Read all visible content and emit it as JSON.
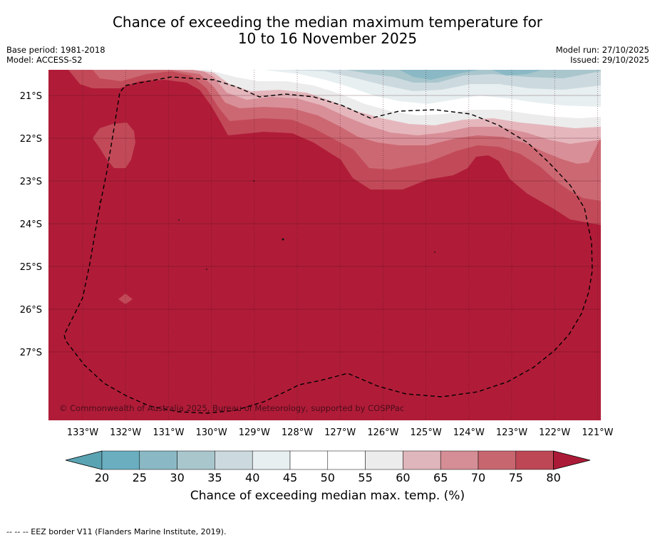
{
  "title": {
    "line1": "Chance of exceeding the median maximum temperature for",
    "line2": "10 to 16 November 2025"
  },
  "meta_left": {
    "base_period": "Base period: 1981-2018",
    "model": "Model: ACCESS-S2"
  },
  "meta_right": {
    "model_run": "Model run: 27/10/2025",
    "issued": "Issued: 29/10/2025"
  },
  "map": {
    "lon_labels": [
      "133°W",
      "132°W",
      "131°W",
      "130°W",
      "129°W",
      "128°W",
      "127°W",
      "126°W",
      "125°W",
      "124°W",
      "123°W",
      "122°W",
      "121°W"
    ],
    "lat_labels": [
      "21°S",
      "22°S",
      "23°S",
      "24°S",
      "25°S",
      "26°S",
      "27°S"
    ],
    "copyright": "© Commonwealth of Australia 2025, Bureau of Meteorology, supported by COSPPac",
    "dominant_category": "80+",
    "colors": {
      "c80": "#b01c38",
      "c75": "#c24a58",
      "c70": "#cc6872",
      "c65": "#d98f98",
      "c60": "#e5b7bd",
      "c55": "#ececec",
      "c50": "#ffffff",
      "c45": "#ffffff",
      "c40": "#e8eff1",
      "c35": "#ccdadf",
      "c30": "#a9c6cd",
      "c25": "#8ab9c5",
      "c20": "#6aaebf"
    }
  },
  "colorbar": {
    "ticks": [
      "20",
      "25",
      "30",
      "35",
      "40",
      "45",
      "50",
      "55",
      "60",
      "65",
      "70",
      "75",
      "80"
    ],
    "label": "Chance of exceeding median max. temp. (%)",
    "under_color": "#5aa3b3",
    "segment_colors": [
      "#6aaebf",
      "#8ab9c5",
      "#a9c6cd",
      "#ccdadf",
      "#e8eff1",
      "#ffffff",
      "#ffffff",
      "#ececec",
      "#dfb6bb",
      "#d58e95",
      "#c86670",
      "#bd4755"
    ],
    "over_color": "#ab1b37"
  },
  "footer": "-- -- -- EEZ border V11 (Flanders Marine Institute, 2019)."
}
